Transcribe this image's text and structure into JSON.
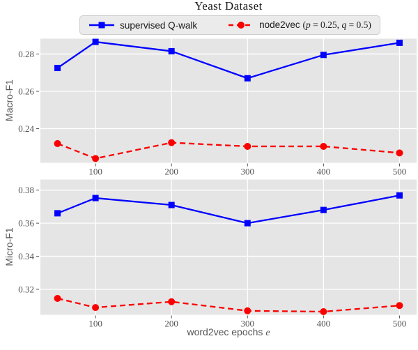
{
  "title": "Yeast Dataset",
  "xlabel": {
    "text": "word2vec epochs",
    "var": "e"
  },
  "colors": {
    "series_blue": "#0000ff",
    "series_red": "#fb0000",
    "axes_background": "#e5e5e5",
    "gridline": "#ffffff",
    "tick_text": "#555555",
    "legend_background": "#ebebeb"
  },
  "legend": {
    "items": [
      {
        "label": "supervised Q-walk",
        "color": "#0000ff",
        "line": "solid",
        "marker": "square"
      },
      {
        "label": "node2vec (p = 0.25, q = 0.5)",
        "color": "#fb0000",
        "line": "dashed",
        "marker": "circle",
        "parts": {
          "prefix": "node2vec ",
          "open": "(",
          "p": "p",
          "eq1": " = 0.25, ",
          "q": "q",
          "eq2": " = 0.5)"
        }
      }
    ]
  },
  "chart_data": [
    {
      "type": "line",
      "title": "Yeast Dataset",
      "ylabel": "Macro-F1",
      "xlabel": "word2vec epochs e",
      "x": [
        50,
        100,
        200,
        300,
        400,
        500
      ],
      "series": [
        {
          "name": "supervised Q-walk",
          "color": "#0000ff",
          "linestyle": "solid",
          "marker": "square",
          "values": [
            0.2725,
            0.2865,
            0.2815,
            0.267,
            0.2795,
            0.286
          ]
        },
        {
          "name": "node2vec (p = 0.25, q = 0.5)",
          "color": "#fb0000",
          "linestyle": "dashed",
          "marker": "circle",
          "values": [
            0.232,
            0.224,
            0.2325,
            0.2305,
            0.2305,
            0.227
          ]
        }
      ],
      "xlim": [
        27.5,
        522.5
      ],
      "ylim": [
        0.2217,
        0.2882
      ],
      "xticks": [
        100,
        200,
        300,
        400,
        500
      ],
      "yticks": [
        0.24,
        0.26,
        0.28
      ],
      "grid": true,
      "legend_position": "above-figure"
    },
    {
      "type": "line",
      "title": "",
      "ylabel": "Micro-F1",
      "xlabel": "word2vec epochs e",
      "x": [
        50,
        100,
        200,
        300,
        400,
        500
      ],
      "series": [
        {
          "name": "supervised Q-walk",
          "color": "#0000ff",
          "linestyle": "solid",
          "marker": "square",
          "values": [
            0.366,
            0.3752,
            0.371,
            0.36,
            0.368,
            0.3768
          ]
        },
        {
          "name": "node2vec (p = 0.25, q = 0.5)",
          "color": "#fb0000",
          "linestyle": "dashed",
          "marker": "circle",
          "values": [
            0.3145,
            0.309,
            0.3125,
            0.307,
            0.3065,
            0.3102
          ]
        }
      ],
      "xlim": [
        27.5,
        522.5
      ],
      "ylim": [
        0.3046,
        0.3864
      ],
      "xticks": [
        100,
        200,
        300,
        400,
        500
      ],
      "yticks": [
        0.32,
        0.34,
        0.36,
        0.38
      ],
      "grid": true,
      "legend_position": "above-figure"
    }
  ]
}
